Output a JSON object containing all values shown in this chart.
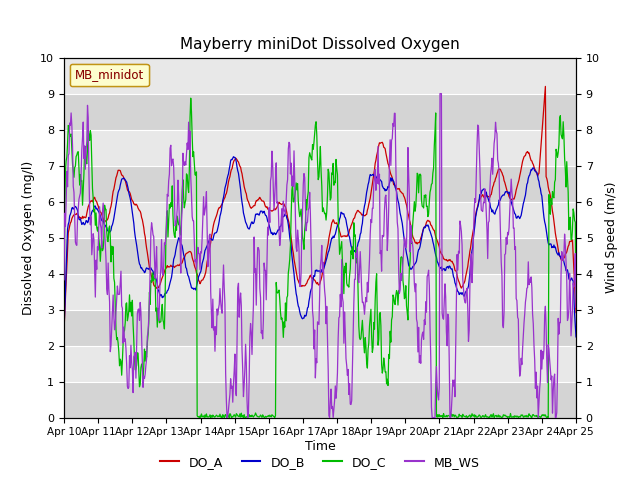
{
  "title": "Mayberry miniDot Dissolved Oxygen",
  "ylabel_left": "Dissolved Oxygen (mg/l)",
  "ylabel_right": "Wind Speed (m/s)",
  "xlabel": "Time",
  "ylim": [
    0.0,
    10.0
  ],
  "yticks": [
    0.0,
    1.0,
    2.0,
    3.0,
    4.0,
    5.0,
    6.0,
    7.0,
    8.0,
    9.0,
    10.0
  ],
  "xtick_labels": [
    "Apr 10",
    "Apr 11",
    "Apr 12",
    "Apr 13",
    "Apr 14",
    "Apr 15",
    "Apr 16",
    "Apr 17",
    "Apr 18",
    "Apr 19",
    "Apr 20",
    "Apr 21",
    "Apr 22",
    "Apr 23",
    "Apr 24",
    "Apr 25"
  ],
  "color_DO_A": "#cc0000",
  "color_DO_B": "#0000cc",
  "color_DO_C": "#00bb00",
  "color_MB_WS": "#9933cc",
  "legend_box_label": "MB_minidot",
  "legend_box_facecolor": "#ffffcc",
  "legend_box_edgecolor": "#bb8800",
  "legend_box_textcolor": "#880000",
  "bg_color_light": "#e8e8e8",
  "bg_color_dark": "#d4d4d4",
  "grid_color": "#ffffff",
  "fig_bg": "#ffffff",
  "n_points": 720,
  "seed": 7
}
